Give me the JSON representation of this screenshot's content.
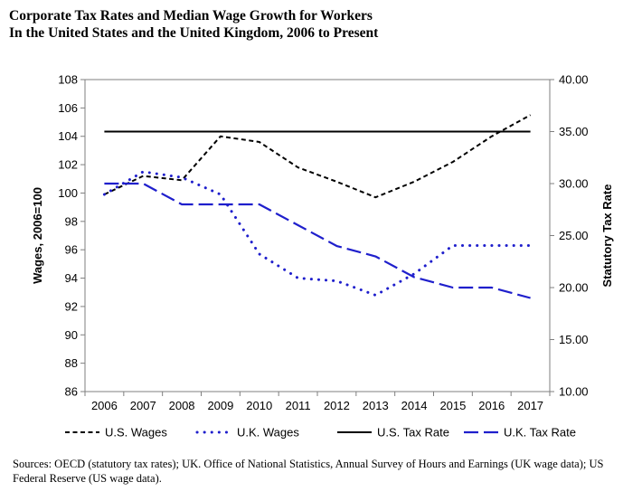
{
  "title": {
    "line1": "Corporate Tax Rates and Median Wage Growth for Workers",
    "line2": "In the United States and the United Kingdom, 2006 to Present"
  },
  "source": "Sources:  OECD (statutory tax rates); UK. Office of National Statistics, Annual Survey of Hours and Earnings (UK wage data); US Federal Reserve (US wage data).",
  "chart_data": {
    "type": "line",
    "title": "Corporate Tax Rates and Median Wage Growth for Workers In the United States and the United Kingdom, 2006 to Present",
    "x": [
      2006,
      2007,
      2008,
      2009,
      2010,
      2011,
      2012,
      2013,
      2014,
      2015,
      2016,
      2017
    ],
    "x_tick_labels": [
      "2006",
      "2007",
      "2008",
      "2009",
      "2010",
      "2011",
      "2012",
      "2013",
      "2014",
      "2015",
      "2016",
      "2017"
    ],
    "ylabel": "Wages, 2006=100",
    "y2label": "Statutory Tax Rate",
    "ylim": [
      86,
      108
    ],
    "y2lim": [
      10,
      40
    ],
    "y_ticks": [
      "86",
      "88",
      "90",
      "92",
      "94",
      "96",
      "98",
      "100",
      "102",
      "104",
      "106",
      "108"
    ],
    "y2_ticks": [
      "10.00",
      "15.00",
      "20.00",
      "25.00",
      "30.00",
      "35.00",
      "40.00"
    ],
    "grid": false,
    "series": [
      {
        "name": "U.S. Wages",
        "axis": "left",
        "style": "short-dash",
        "color": "#000000",
        "points": [
          [
            2006,
            99.9
          ],
          [
            2007,
            101.2
          ],
          [
            2008,
            100.9
          ],
          [
            2009,
            104.0
          ],
          [
            2010,
            103.6
          ],
          [
            2011,
            101.8
          ],
          [
            2012,
            100.8
          ],
          [
            2013,
            99.7
          ],
          [
            2014,
            100.8
          ],
          [
            2015,
            102.2
          ],
          [
            2016,
            104.0
          ],
          [
            2017,
            105.5
          ]
        ]
      },
      {
        "name": "U.K. Wages",
        "axis": "left",
        "style": "dotted",
        "color": "#1f1fcc",
        "points": [
          [
            2006,
            99.9
          ],
          [
            2007,
            101.5
          ],
          [
            2008,
            101.1
          ],
          [
            2009,
            99.9
          ],
          [
            2010,
            95.7
          ],
          [
            2011,
            94.0
          ],
          [
            2012,
            93.8
          ],
          [
            2013,
            92.8
          ],
          [
            2014,
            94.3
          ],
          [
            2015,
            96.3
          ],
          [
            2016,
            96.3
          ],
          [
            2017,
            96.3
          ]
        ]
      },
      {
        "name": "U.S. Tax Rate",
        "axis": "right",
        "style": "solid",
        "color": "#000000",
        "points": [
          [
            2006,
            35.0
          ],
          [
            2007,
            35.0
          ],
          [
            2008,
            35.0
          ],
          [
            2009,
            35.0
          ],
          [
            2010,
            35.0
          ],
          [
            2011,
            35.0
          ],
          [
            2012,
            35.0
          ],
          [
            2013,
            35.0
          ],
          [
            2014,
            35.0
          ],
          [
            2015,
            35.0
          ],
          [
            2016,
            35.0
          ],
          [
            2017,
            35.0
          ]
        ]
      },
      {
        "name": "U.K. Tax Rate",
        "axis": "right",
        "style": "long-dash",
        "color": "#1f1fcc",
        "points": [
          [
            2006,
            30.0
          ],
          [
            2007,
            30.0
          ],
          [
            2008,
            28.0
          ],
          [
            2009,
            28.0
          ],
          [
            2010,
            28.0
          ],
          [
            2011,
            26.0
          ],
          [
            2012,
            24.0
          ],
          [
            2013,
            23.0
          ],
          [
            2014,
            21.0
          ],
          [
            2015,
            20.0
          ],
          [
            2016,
            20.0
          ],
          [
            2017,
            19.0
          ]
        ]
      }
    ],
    "legend": {
      "position": "bottom",
      "items": [
        "U.S. Wages",
        "U.K. Wages",
        "U.S. Tax Rate",
        "U.K. Tax Rate"
      ]
    }
  }
}
